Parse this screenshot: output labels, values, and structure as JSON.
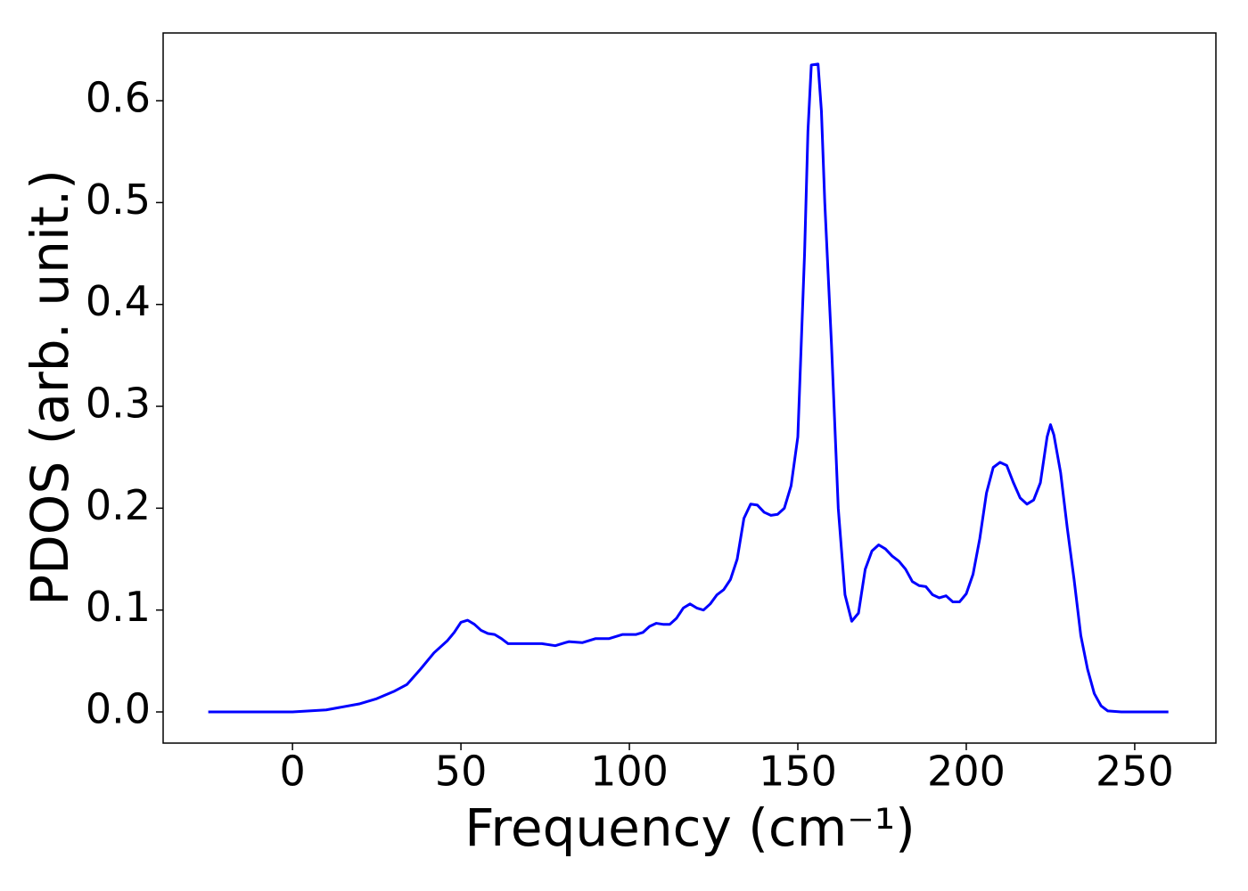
{
  "chart_data": {
    "type": "line",
    "x_label": "Frequency (cm⁻¹)",
    "y_label": "PDOS (arb. unit.)",
    "x": [
      -25,
      0,
      10,
      20,
      25,
      30,
      34,
      38,
      42,
      46,
      48,
      50,
      52,
      54,
      56,
      58,
      60,
      62,
      64,
      66,
      70,
      74,
      78,
      82,
      86,
      90,
      94,
      98,
      102,
      104,
      106,
      108,
      110,
      112,
      114,
      116,
      118,
      120,
      122,
      124,
      126,
      128,
      130,
      132,
      134,
      136,
      138,
      140,
      142,
      144,
      146,
      148,
      150,
      151,
      152,
      153,
      154,
      156,
      157,
      158,
      160,
      162,
      164,
      166,
      168,
      170,
      172,
      174,
      176,
      178,
      180,
      182,
      184,
      186,
      188,
      190,
      192,
      194,
      196,
      198,
      200,
      202,
      204,
      206,
      208,
      210,
      212,
      214,
      216,
      218,
      220,
      222,
      224,
      225,
      226,
      228,
      230,
      232,
      234,
      236,
      238,
      240,
      242,
      246,
      260
    ],
    "series": [
      {
        "name": "PDOS",
        "color": "#0000ff",
        "values": [
          0,
          0,
          0.002,
          0.008,
          0.013,
          0.02,
          0.027,
          0.042,
          0.058,
          0.07,
          0.078,
          0.088,
          0.09,
          0.086,
          0.08,
          0.077,
          0.076,
          0.072,
          0.067,
          0.067,
          0.067,
          0.067,
          0.065,
          0.069,
          0.068,
          0.072,
          0.072,
          0.076,
          0.076,
          0.078,
          0.084,
          0.087,
          0.086,
          0.086,
          0.092,
          0.102,
          0.106,
          0.102,
          0.1,
          0.106,
          0.115,
          0.12,
          0.13,
          0.15,
          0.19,
          0.204,
          0.203,
          0.196,
          0.193,
          0.194,
          0.2,
          0.222,
          0.27,
          0.36,
          0.45,
          0.57,
          0.635,
          0.636,
          0.59,
          0.5,
          0.36,
          0.2,
          0.115,
          0.089,
          0.097,
          0.14,
          0.158,
          0.164,
          0.16,
          0.153,
          0.148,
          0.14,
          0.128,
          0.124,
          0.123,
          0.115,
          0.112,
          0.114,
          0.108,
          0.108,
          0.116,
          0.135,
          0.17,
          0.215,
          0.24,
          0.245,
          0.242,
          0.225,
          0.21,
          0.204,
          0.208,
          0.225,
          0.27,
          0.282,
          0.272,
          0.235,
          0.18,
          0.13,
          0.075,
          0.042,
          0.018,
          0.006,
          0.001,
          0,
          0
        ]
      }
    ],
    "xlim": [
      -38.4,
      274.1
    ],
    "ylim": [
      -0.0306,
      0.6665
    ],
    "xticks": [
      0,
      50,
      100,
      150,
      200,
      250
    ],
    "yticks": [
      {
        "value": 0,
        "label": "0.0"
      },
      0.1,
      0.2,
      0.3,
      0.4,
      0.5,
      0.6
    ]
  }
}
